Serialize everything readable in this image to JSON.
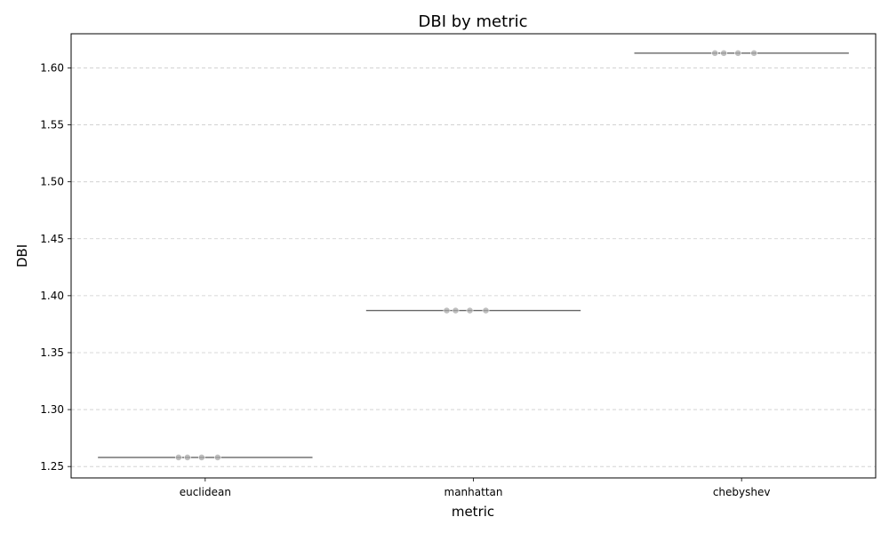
{
  "chart_data": {
    "type": "scatter",
    "title": "DBI by metric",
    "xlabel": "metric",
    "ylabel": "DBI",
    "categories": [
      "euclidean",
      "manhattan",
      "chebyshev"
    ],
    "series": [
      {
        "category": "euclidean",
        "median": 1.258,
        "points": [
          1.258,
          1.258,
          1.258,
          1.258
        ]
      },
      {
        "category": "manhattan",
        "median": 1.387,
        "points": [
          1.387,
          1.387,
          1.387,
          1.387
        ]
      },
      {
        "category": "chebyshev",
        "median": 1.613,
        "points": [
          1.613,
          1.613,
          1.613,
          1.613
        ]
      }
    ],
    "ylim": [
      1.24,
      1.63
    ],
    "yticks": [
      "1.25",
      "1.30",
      "1.35",
      "1.40",
      "1.45",
      "1.50",
      "1.55",
      "1.60"
    ],
    "grid": "y-dashed",
    "colors": {
      "points": "#aaaaaa",
      "median": "#666666",
      "grid": "#cccccc"
    }
  }
}
